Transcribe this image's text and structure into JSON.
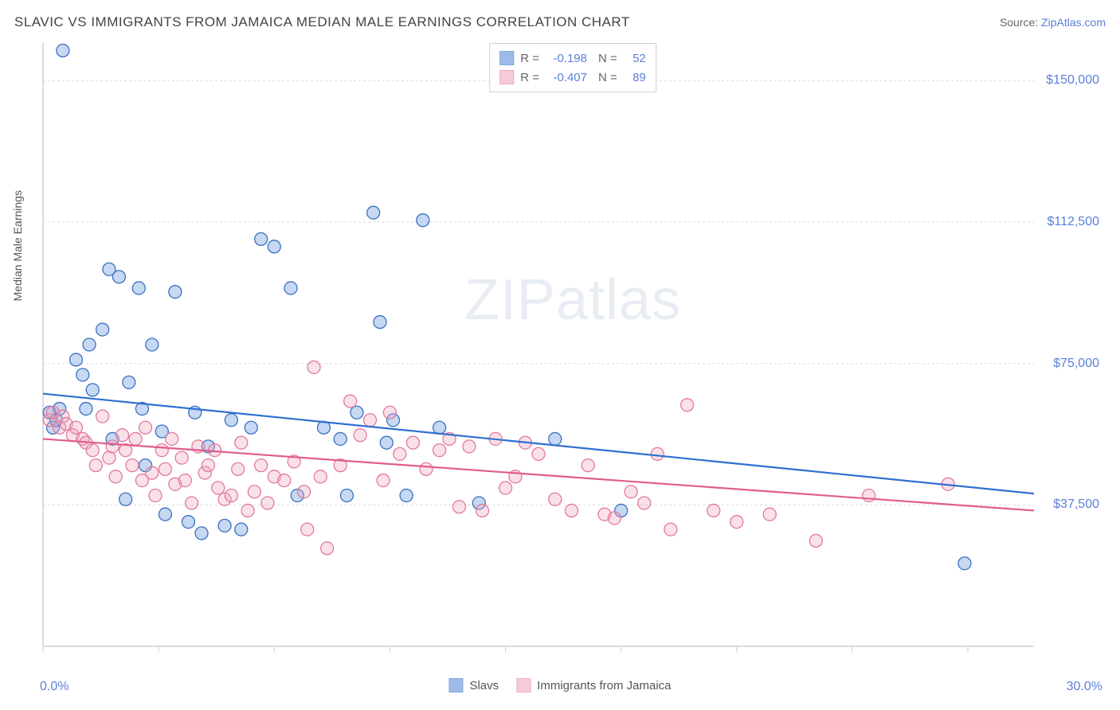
{
  "title": "SLAVIC VS IMMIGRANTS FROM JAMAICA MEDIAN MALE EARNINGS CORRELATION CHART",
  "source_prefix": "Source: ",
  "source_link": "ZipAtlas.com",
  "ylabel": "Median Male Earnings",
  "watermark": "ZIPatlas",
  "chart": {
    "type": "scatter",
    "xlim": [
      0,
      30
    ],
    "ylim": [
      0,
      160000
    ],
    "xmin_label": "0.0%",
    "xmax_label": "30.0%",
    "y_gridlines": [
      37500,
      75000,
      112500,
      150000
    ],
    "y_grid_labels": [
      "$37,500",
      "$75,000",
      "$112,500",
      "$150,000"
    ],
    "x_ticks": [
      0,
      3.5,
      7,
      10.5,
      14,
      17.5,
      21,
      24.5,
      28
    ],
    "grid_color": "#dcdcdc",
    "axis_color": "#cfcfcf",
    "background_color": "#ffffff",
    "marker_radius": 8,
    "marker_fill_opacity": 0.35,
    "marker_stroke_width": 1.3,
    "line_width": 2.2
  },
  "series": [
    {
      "name": "Slavs",
      "color": "#5b8fd9",
      "stroke": "#3a70c2",
      "line_color": "#2f6fd0",
      "R": "-0.198",
      "N": "52",
      "trend": {
        "x1": 0,
        "y1": 67000,
        "x2": 30,
        "y2": 40500
      },
      "points": [
        [
          0.2,
          62000
        ],
        [
          0.3,
          58000
        ],
        [
          0.4,
          60000
        ],
        [
          0.5,
          63000
        ],
        [
          0.6,
          158000
        ],
        [
          1.0,
          76000
        ],
        [
          1.2,
          72000
        ],
        [
          1.3,
          63000
        ],
        [
          1.4,
          80000
        ],
        [
          1.5,
          68000
        ],
        [
          1.8,
          84000
        ],
        [
          2.0,
          100000
        ],
        [
          2.1,
          55000
        ],
        [
          2.3,
          98000
        ],
        [
          2.5,
          39000
        ],
        [
          2.6,
          70000
        ],
        [
          2.9,
          95000
        ],
        [
          3.0,
          63000
        ],
        [
          3.1,
          48000
        ],
        [
          3.3,
          80000
        ],
        [
          3.6,
          57000
        ],
        [
          3.7,
          35000
        ],
        [
          4.0,
          94000
        ],
        [
          4.4,
          33000
        ],
        [
          4.6,
          62000
        ],
        [
          4.8,
          30000
        ],
        [
          5.0,
          53000
        ],
        [
          5.5,
          32000
        ],
        [
          5.7,
          60000
        ],
        [
          6.0,
          31000
        ],
        [
          6.3,
          58000
        ],
        [
          6.6,
          108000
        ],
        [
          7.0,
          106000
        ],
        [
          7.5,
          95000
        ],
        [
          7.7,
          40000
        ],
        [
          8.5,
          58000
        ],
        [
          9.0,
          55000
        ],
        [
          9.2,
          40000
        ],
        [
          9.5,
          62000
        ],
        [
          10.0,
          115000
        ],
        [
          10.2,
          86000
        ],
        [
          10.4,
          54000
        ],
        [
          10.6,
          60000
        ],
        [
          11.0,
          40000
        ],
        [
          11.5,
          113000
        ],
        [
          12.0,
          58000
        ],
        [
          13.2,
          38000
        ],
        [
          15.5,
          55000
        ],
        [
          17.5,
          36000
        ],
        [
          27.9,
          22000
        ]
      ]
    },
    {
      "name": "Immigrants from Jamaica",
      "color": "#f1a9bf",
      "stroke": "#e27a9b",
      "line_color": "#e05d8a",
      "R": "-0.407",
      "N": "89",
      "trend": {
        "x1": 0,
        "y1": 55000,
        "x2": 30,
        "y2": 36000
      },
      "points": [
        [
          0.2,
          60000
        ],
        [
          0.3,
          62000
        ],
        [
          0.5,
          58000
        ],
        [
          0.6,
          61000
        ],
        [
          0.7,
          59000
        ],
        [
          0.9,
          56000
        ],
        [
          1.0,
          58000
        ],
        [
          1.2,
          55000
        ],
        [
          1.3,
          54000
        ],
        [
          1.5,
          52000
        ],
        [
          1.6,
          48000
        ],
        [
          1.8,
          61000
        ],
        [
          2.0,
          50000
        ],
        [
          2.1,
          53000
        ],
        [
          2.2,
          45000
        ],
        [
          2.4,
          56000
        ],
        [
          2.5,
          52000
        ],
        [
          2.7,
          48000
        ],
        [
          2.8,
          55000
        ],
        [
          3.0,
          44000
        ],
        [
          3.1,
          58000
        ],
        [
          3.3,
          46000
        ],
        [
          3.4,
          40000
        ],
        [
          3.6,
          52000
        ],
        [
          3.7,
          47000
        ],
        [
          3.9,
          55000
        ],
        [
          4.0,
          43000
        ],
        [
          4.2,
          50000
        ],
        [
          4.3,
          44000
        ],
        [
          4.5,
          38000
        ],
        [
          4.7,
          53000
        ],
        [
          4.9,
          46000
        ],
        [
          5.0,
          48000
        ],
        [
          5.2,
          52000
        ],
        [
          5.3,
          42000
        ],
        [
          5.5,
          39000
        ],
        [
          5.7,
          40000
        ],
        [
          5.9,
          47000
        ],
        [
          6.0,
          54000
        ],
        [
          6.2,
          36000
        ],
        [
          6.4,
          41000
        ],
        [
          6.6,
          48000
        ],
        [
          6.8,
          38000
        ],
        [
          7.0,
          45000
        ],
        [
          7.3,
          44000
        ],
        [
          7.6,
          49000
        ],
        [
          7.9,
          41000
        ],
        [
          8.0,
          31000
        ],
        [
          8.2,
          74000
        ],
        [
          8.4,
          45000
        ],
        [
          8.6,
          26000
        ],
        [
          9.0,
          48000
        ],
        [
          9.3,
          65000
        ],
        [
          9.6,
          56000
        ],
        [
          9.9,
          60000
        ],
        [
          10.3,
          44000
        ],
        [
          10.5,
          62000
        ],
        [
          10.8,
          51000
        ],
        [
          11.2,
          54000
        ],
        [
          11.6,
          47000
        ],
        [
          12.0,
          52000
        ],
        [
          12.3,
          55000
        ],
        [
          12.6,
          37000
        ],
        [
          12.9,
          53000
        ],
        [
          13.3,
          36000
        ],
        [
          13.7,
          55000
        ],
        [
          14.0,
          42000
        ],
        [
          14.3,
          45000
        ],
        [
          14.6,
          54000
        ],
        [
          15.0,
          51000
        ],
        [
          15.5,
          39000
        ],
        [
          16.0,
          36000
        ],
        [
          16.5,
          48000
        ],
        [
          17.0,
          35000
        ],
        [
          17.3,
          34000
        ],
        [
          17.8,
          41000
        ],
        [
          18.2,
          38000
        ],
        [
          18.6,
          51000
        ],
        [
          19.0,
          31000
        ],
        [
          19.5,
          64000
        ],
        [
          20.3,
          36000
        ],
        [
          21.0,
          33000
        ],
        [
          22.0,
          35000
        ],
        [
          23.4,
          28000
        ],
        [
          25.0,
          40000
        ],
        [
          27.4,
          43000
        ]
      ]
    }
  ],
  "legend": {
    "r_label": "R =",
    "n_label": "N ="
  }
}
